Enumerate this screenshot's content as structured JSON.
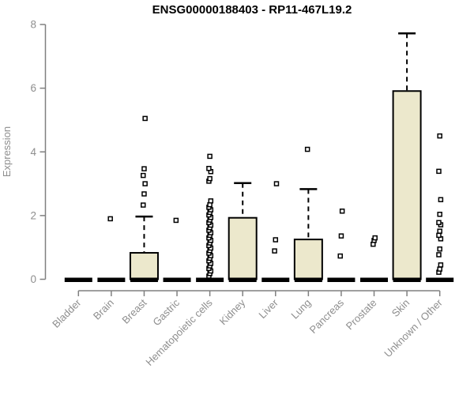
{
  "chart_data": {
    "type": "boxplot",
    "title": "ENSG00000188403 - RP11-467L19.2",
    "ylabel": "Expression",
    "ylim": [
      0,
      8
    ],
    "yticks": [
      0,
      2,
      4,
      6,
      8
    ],
    "grid": false,
    "legend": "none",
    "colors": {
      "box_fill": "#ECE8CC",
      "box_stroke": "#000000",
      "axis": "#808080",
      "tick_text": "#8e8e8e",
      "title_text": "#000000"
    },
    "categories": [
      "Bladder",
      "Brain",
      "Breast",
      "Gastric",
      "Hematopoietic cells",
      "Kidney",
      "Liver",
      "Lung",
      "Pancreas",
      "Prostate",
      "Skin",
      "Unknown / Other"
    ],
    "series": [
      {
        "category": "Bladder",
        "median": 0,
        "q1": 0,
        "q3": 0,
        "whisker_low": 0,
        "whisker_high": 0,
        "outliers": []
      },
      {
        "category": "Brain",
        "median": 0,
        "q1": 0,
        "q3": 0,
        "whisker_low": 0,
        "whisker_high": 0,
        "outliers": [
          1.9
        ]
      },
      {
        "category": "Breast",
        "median": 0,
        "q1": 0,
        "q3": 0.83,
        "whisker_low": 0,
        "whisker_high": 1.97,
        "outliers": [
          2.33,
          2.68,
          3.0,
          3.26,
          3.47,
          5.05
        ]
      },
      {
        "category": "Gastric",
        "median": 0,
        "q1": 0,
        "q3": 0,
        "whisker_low": 0,
        "whisker_high": 0,
        "outliers": [
          1.85
        ]
      },
      {
        "category": "Hematopoietic cells",
        "median": 0,
        "q1": 0,
        "q3": 0,
        "whisker_low": 0,
        "whisker_high": 0,
        "outliers": [
          0.1,
          0.18,
          0.26,
          0.34,
          0.42,
          0.5,
          0.58,
          0.66,
          0.74,
          0.82,
          0.9,
          0.98,
          1.06,
          1.14,
          1.22,
          1.3,
          1.38,
          1.46,
          1.54,
          1.62,
          1.7,
          1.78,
          1.86,
          1.94,
          2.02,
          2.1,
          2.18,
          2.26,
          2.34,
          2.46,
          3.08,
          3.16,
          3.38,
          3.48,
          3.86
        ]
      },
      {
        "category": "Kidney",
        "median": 0,
        "q1": 0,
        "q3": 1.93,
        "whisker_low": 0,
        "whisker_high": 3.02,
        "outliers": []
      },
      {
        "category": "Liver",
        "median": 0,
        "q1": 0,
        "q3": 0,
        "whisker_low": 0,
        "whisker_high": 0,
        "outliers": [
          0.89,
          1.24,
          3.0
        ]
      },
      {
        "category": "Lung",
        "median": 0,
        "q1": 0,
        "q3": 1.25,
        "whisker_low": 0,
        "whisker_high": 2.83,
        "outliers": [
          4.08
        ]
      },
      {
        "category": "Pancreas",
        "median": 0,
        "q1": 0,
        "q3": 0,
        "whisker_low": 0,
        "whisker_high": 0,
        "outliers": [
          0.73,
          1.36,
          2.14
        ]
      },
      {
        "category": "Prostate",
        "median": 0,
        "q1": 0,
        "q3": 0,
        "whisker_low": 0,
        "whisker_high": 0,
        "outliers": [
          1.1,
          1.22,
          1.3
        ]
      },
      {
        "category": "Skin",
        "median": 0,
        "q1": 0,
        "q3": 5.91,
        "whisker_low": 0,
        "whisker_high": 7.72,
        "outliers": []
      },
      {
        "category": "Unknown / Other",
        "median": 0,
        "q1": 0,
        "q3": 0,
        "whisker_low": 0,
        "whisker_high": 0,
        "outliers": [
          0.22,
          0.32,
          0.45,
          0.77,
          0.95,
          1.27,
          1.38,
          1.51,
          1.71,
          1.78,
          2.04,
          2.5,
          3.39,
          4.5
        ]
      }
    ]
  }
}
